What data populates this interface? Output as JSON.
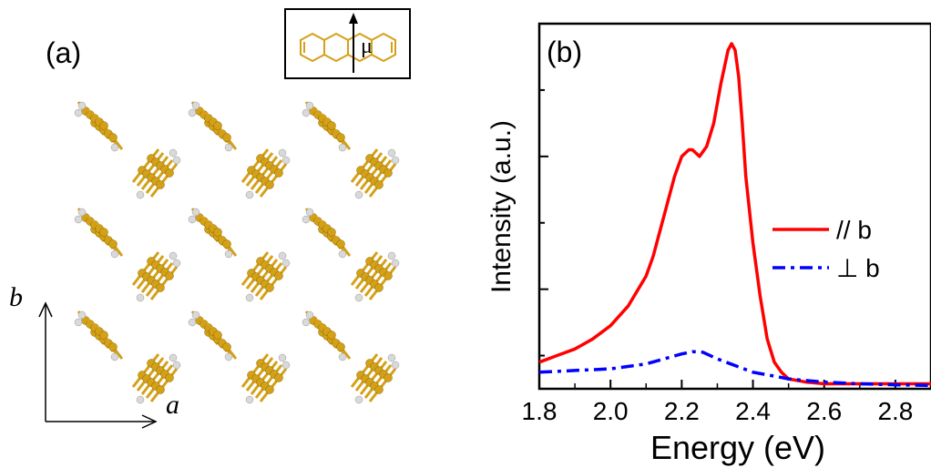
{
  "panel_a": {
    "label": "(a)",
    "inset_symbol": "μ",
    "axis_a_label": "a",
    "axis_b_label": "b",
    "molecule_color": "#D4A017",
    "hydrogen_color": "#d9d9d9"
  },
  "chart_data": {
    "type": "line",
    "panel_label": "(b)",
    "xlabel": "Energy (eV)",
    "ylabel": "Intensity (a.u.)",
    "xlim": [
      1.8,
      2.9
    ],
    "ylim": [
      0,
      1.1
    ],
    "x_ticks": [
      "1.8",
      "2.0",
      "2.2",
      "2.4",
      "2.6",
      "2.8"
    ],
    "x_tick_values": [
      1.8,
      2.0,
      2.2,
      2.4,
      2.6,
      2.8
    ],
    "legend_position": "right",
    "series": [
      {
        "name": "// b",
        "color": "#ff0000",
        "style": "solid",
        "x": [
          1.8,
          1.85,
          1.9,
          1.95,
          2.0,
          2.05,
          2.1,
          2.12,
          2.14,
          2.16,
          2.18,
          2.2,
          2.22,
          2.23,
          2.25,
          2.27,
          2.29,
          2.31,
          2.33,
          2.34,
          2.35,
          2.36,
          2.37,
          2.38,
          2.4,
          2.42,
          2.44,
          2.46,
          2.48,
          2.5,
          2.55,
          2.6,
          2.7,
          2.8,
          2.9
        ],
        "y": [
          0.08,
          0.1,
          0.12,
          0.15,
          0.19,
          0.25,
          0.34,
          0.4,
          0.48,
          0.56,
          0.64,
          0.7,
          0.72,
          0.72,
          0.7,
          0.73,
          0.8,
          0.92,
          1.02,
          1.04,
          1.02,
          0.94,
          0.8,
          0.64,
          0.44,
          0.28,
          0.15,
          0.08,
          0.05,
          0.03,
          0.02,
          0.015,
          0.015,
          0.015,
          0.015
        ]
      },
      {
        "name": "⊥ b",
        "color": "#0000ff",
        "style": "dashdot",
        "x": [
          1.8,
          1.9,
          2.0,
          2.1,
          2.15,
          2.2,
          2.23,
          2.26,
          2.3,
          2.35,
          2.4,
          2.45,
          2.5,
          2.6,
          2.7,
          2.8,
          2.9
        ],
        "y": [
          0.05,
          0.055,
          0.06,
          0.075,
          0.09,
          0.105,
          0.112,
          0.11,
          0.09,
          0.07,
          0.05,
          0.04,
          0.03,
          0.02,
          0.015,
          0.012,
          0.01
        ]
      }
    ]
  }
}
